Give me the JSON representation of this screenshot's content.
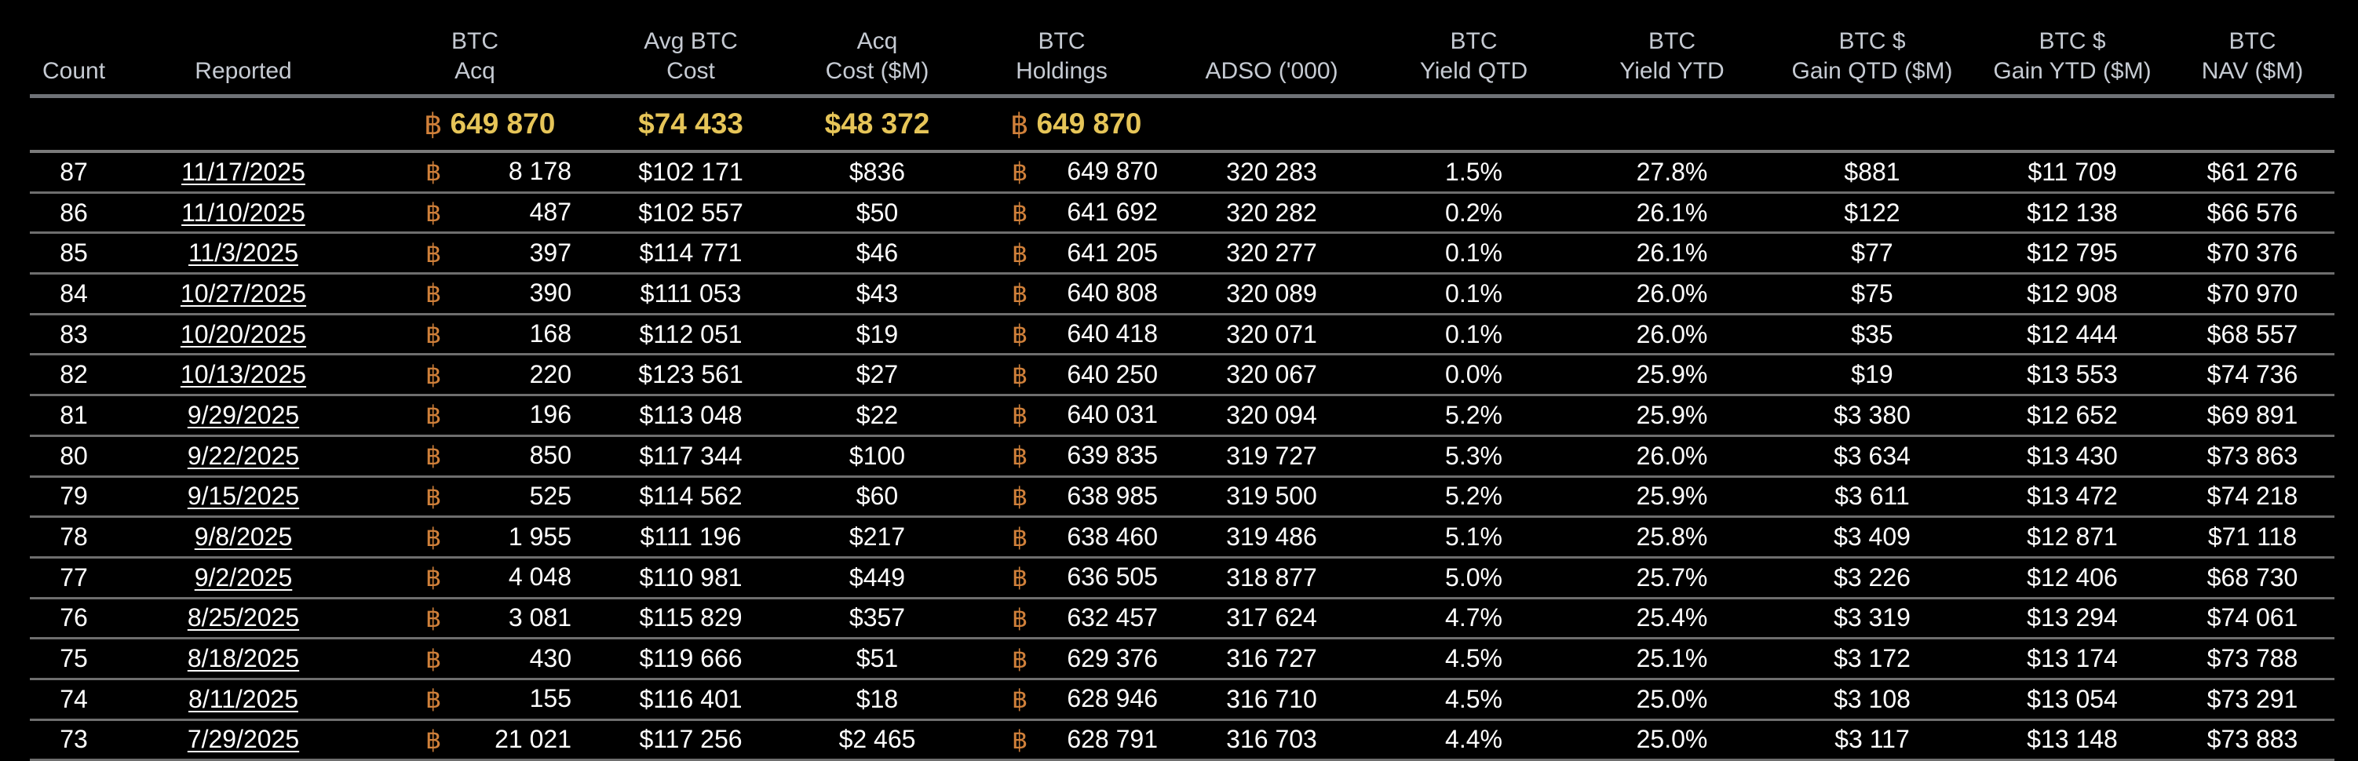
{
  "theme": {
    "background": "#000000",
    "header_text": "#c6cbd3",
    "summary_gold": "#e6c558",
    "btc_orange": "#d0803a",
    "row_text": "#ffffff"
  },
  "btc_symbol": "฿",
  "headers": [
    {
      "line1": "",
      "line2": "Count"
    },
    {
      "line1": "",
      "line2": "Reported"
    },
    {
      "line1": "BTC",
      "line2": "Acq"
    },
    {
      "line1": "Avg BTC",
      "line2": "Cost"
    },
    {
      "line1": "Acq",
      "line2": "Cost ($M)"
    },
    {
      "line1": "BTC",
      "line2": "Holdings"
    },
    {
      "line1": "",
      "line2": "ADSO ('000)"
    },
    {
      "line1": "BTC",
      "line2": "Yield QTD"
    },
    {
      "line1": "BTC",
      "line2": "Yield YTD"
    },
    {
      "line1": "BTC $",
      "line2": "Gain QTD ($M)"
    },
    {
      "line1": "BTC $",
      "line2": "Gain YTD ($M)"
    },
    {
      "line1": "BTC",
      "line2": "NAV ($M)"
    }
  ],
  "summary": {
    "btc_acq": "649 870",
    "avg_btc_cost": "$74 433",
    "acq_cost": "$48 372",
    "btc_holdings": "649 870"
  },
  "rows": [
    {
      "count": "87",
      "reported": "11/17/2025",
      "btc_acq": "8 178",
      "avg_cost": "$102 171",
      "acq_cost": "$836",
      "holdings": "649 870",
      "adso": "320 283",
      "yield_qtd": "1.5%",
      "yield_ytd": "27.8%",
      "gain_qtd": "$881",
      "gain_ytd": "$11 709",
      "nav": "$61 276"
    },
    {
      "count": "86",
      "reported": "11/10/2025",
      "btc_acq": "487",
      "avg_cost": "$102 557",
      "acq_cost": "$50",
      "holdings": "641 692",
      "adso": "320 282",
      "yield_qtd": "0.2%",
      "yield_ytd": "26.1%",
      "gain_qtd": "$122",
      "gain_ytd": "$12 138",
      "nav": "$66 576"
    },
    {
      "count": "85",
      "reported": "11/3/2025",
      "btc_acq": "397",
      "avg_cost": "$114 771",
      "acq_cost": "$46",
      "holdings": "641 205",
      "adso": "320 277",
      "yield_qtd": "0.1%",
      "yield_ytd": "26.1%",
      "gain_qtd": "$77",
      "gain_ytd": "$12 795",
      "nav": "$70 376"
    },
    {
      "count": "84",
      "reported": "10/27/2025",
      "btc_acq": "390",
      "avg_cost": "$111 053",
      "acq_cost": "$43",
      "holdings": "640 808",
      "adso": "320 089",
      "yield_qtd": "0.1%",
      "yield_ytd": "26.0%",
      "gain_qtd": "$75",
      "gain_ytd": "$12 908",
      "nav": "$70 970"
    },
    {
      "count": "83",
      "reported": "10/20/2025",
      "btc_acq": "168",
      "avg_cost": "$112 051",
      "acq_cost": "$19",
      "holdings": "640 418",
      "adso": "320 071",
      "yield_qtd": "0.1%",
      "yield_ytd": "26.0%",
      "gain_qtd": "$35",
      "gain_ytd": "$12 444",
      "nav": "$68 557"
    },
    {
      "count": "82",
      "reported": "10/13/2025",
      "btc_acq": "220",
      "avg_cost": "$123 561",
      "acq_cost": "$27",
      "holdings": "640 250",
      "adso": "320 067",
      "yield_qtd": "0.0%",
      "yield_ytd": "25.9%",
      "gain_qtd": "$19",
      "gain_ytd": "$13 553",
      "nav": "$74 736"
    },
    {
      "count": "81",
      "reported": "9/29/2025",
      "btc_acq": "196",
      "avg_cost": "$113 048",
      "acq_cost": "$22",
      "holdings": "640 031",
      "adso": "320 094",
      "yield_qtd": "5.2%",
      "yield_ytd": "25.9%",
      "gain_qtd": "$3 380",
      "gain_ytd": "$12 652",
      "nav": "$69 891"
    },
    {
      "count": "80",
      "reported": "9/22/2025",
      "btc_acq": "850",
      "avg_cost": "$117 344",
      "acq_cost": "$100",
      "holdings": "639 835",
      "adso": "319 727",
      "yield_qtd": "5.3%",
      "yield_ytd": "26.0%",
      "gain_qtd": "$3 634",
      "gain_ytd": "$13 430",
      "nav": "$73 863"
    },
    {
      "count": "79",
      "reported": "9/15/2025",
      "btc_acq": "525",
      "avg_cost": "$114 562",
      "acq_cost": "$60",
      "holdings": "638 985",
      "adso": "319 500",
      "yield_qtd": "5.2%",
      "yield_ytd": "25.9%",
      "gain_qtd": "$3 611",
      "gain_ytd": "$13 472",
      "nav": "$74 218"
    },
    {
      "count": "78",
      "reported": "9/8/2025",
      "btc_acq": "1 955",
      "avg_cost": "$111 196",
      "acq_cost": "$217",
      "holdings": "638 460",
      "adso": "319 486",
      "yield_qtd": "5.1%",
      "yield_ytd": "25.8%",
      "gain_qtd": "$3 409",
      "gain_ytd": "$12 871",
      "nav": "$71 118"
    },
    {
      "count": "77",
      "reported": "9/2/2025",
      "btc_acq": "4 048",
      "avg_cost": "$110 981",
      "acq_cost": "$449",
      "holdings": "636 505",
      "adso": "318 877",
      "yield_qtd": "5.0%",
      "yield_ytd": "25.7%",
      "gain_qtd": "$3 226",
      "gain_ytd": "$12 406",
      "nav": "$68 730"
    },
    {
      "count": "76",
      "reported": "8/25/2025",
      "btc_acq": "3 081",
      "avg_cost": "$115 829",
      "acq_cost": "$357",
      "holdings": "632 457",
      "adso": "317 624",
      "yield_qtd": "4.7%",
      "yield_ytd": "25.4%",
      "gain_qtd": "$3 319",
      "gain_ytd": "$13 294",
      "nav": "$74 061"
    },
    {
      "count": "75",
      "reported": "8/18/2025",
      "btc_acq": "430",
      "avg_cost": "$119 666",
      "acq_cost": "$51",
      "holdings": "629 376",
      "adso": "316 727",
      "yield_qtd": "4.5%",
      "yield_ytd": "25.1%",
      "gain_qtd": "$3 172",
      "gain_ytd": "$13 174",
      "nav": "$73 788"
    },
    {
      "count": "74",
      "reported": "8/11/2025",
      "btc_acq": "155",
      "avg_cost": "$116 401",
      "acq_cost": "$18",
      "holdings": "628 946",
      "adso": "316 710",
      "yield_qtd": "4.5%",
      "yield_ytd": "25.0%",
      "gain_qtd": "$3 108",
      "gain_ytd": "$13 054",
      "nav": "$73 291"
    },
    {
      "count": "73",
      "reported": "7/29/2025",
      "btc_acq": "21 021",
      "avg_cost": "$117 256",
      "acq_cost": "$2 465",
      "holdings": "628 791",
      "adso": "316 703",
      "yield_qtd": "4.4%",
      "yield_ytd": "25.0%",
      "gain_qtd": "$3 117",
      "gain_ytd": "$13 148",
      "nav": "$73 883"
    }
  ]
}
